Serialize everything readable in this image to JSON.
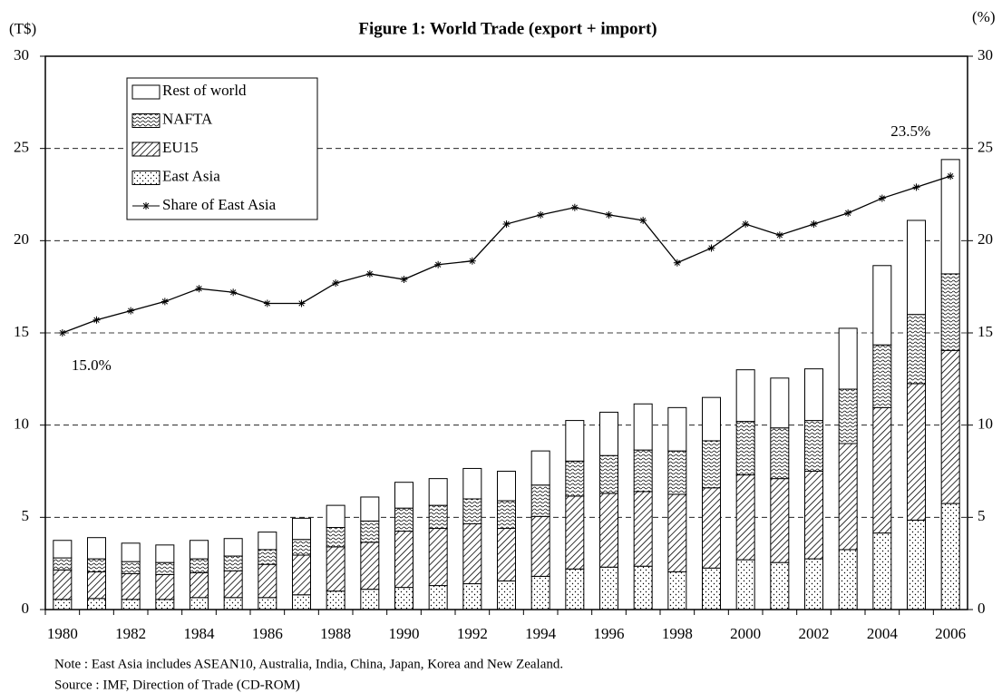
{
  "chart_data": {
    "type": "bar",
    "title": "Figure 1: World Trade (export + import)",
    "y_label": "(T$)",
    "y2_label": "(%)",
    "notes": [
      "Note : East Asia includes ASEAN10, Australia, India, China, Japan, Korea and New Zealand.",
      "Source : IMF, Direction of Trade (CD-ROM)"
    ],
    "categories": [
      "1980",
      null,
      "1982",
      null,
      "1984",
      null,
      "1986",
      null,
      "1988",
      null,
      "1990",
      null,
      "1992",
      null,
      "1994",
      null,
      "1996",
      null,
      "1998",
      null,
      "2000",
      null,
      "2002",
      null,
      "2004",
      null,
      "2006"
    ],
    "stacked": true,
    "series": [
      {
        "name": "East Asia",
        "color": "#000000",
        "pattern": "dots",
        "values": [
          0.55,
          0.6,
          0.55,
          0.55,
          0.65,
          0.65,
          0.65,
          0.8,
          1.0,
          1.1,
          1.2,
          1.3,
          1.4,
          1.55,
          1.8,
          2.2,
          2.3,
          2.35,
          2.05,
          2.25,
          2.7,
          2.55,
          2.75,
          3.25,
          4.15,
          4.85,
          5.75
        ]
      },
      {
        "name": "EU15",
        "color": "#000000",
        "pattern": "hatch",
        "values": [
          1.6,
          1.45,
          1.4,
          1.35,
          1.35,
          1.45,
          1.8,
          2.15,
          2.4,
          2.55,
          3.05,
          3.1,
          3.25,
          2.85,
          3.25,
          3.95,
          4.0,
          4.05,
          4.2,
          4.35,
          4.6,
          4.55,
          4.75,
          5.75,
          6.8,
          7.4,
          8.3
        ]
      },
      {
        "name": "NAFTA",
        "color": "#000000",
        "pattern": "waves",
        "values": [
          0.65,
          0.7,
          0.65,
          0.65,
          0.75,
          0.8,
          0.8,
          0.85,
          1.05,
          1.15,
          1.25,
          1.25,
          1.35,
          1.5,
          1.7,
          1.9,
          2.05,
          2.25,
          2.35,
          2.55,
          2.9,
          2.75,
          2.75,
          2.95,
          3.4,
          3.75,
          4.15
        ]
      },
      {
        "name": "Rest of world",
        "color": "#000000",
        "pattern": "none",
        "values": [
          0.95,
          1.15,
          1.0,
          0.95,
          1.0,
          0.95,
          0.95,
          1.15,
          1.2,
          1.3,
          1.4,
          1.45,
          1.65,
          1.6,
          1.85,
          2.2,
          2.35,
          2.5,
          2.35,
          2.35,
          2.8,
          2.7,
          2.8,
          3.3,
          4.3,
          5.1,
          6.2
        ]
      },
      {
        "name": "Share of East Asia",
        "type": "line",
        "axis": "y2",
        "color": "#000000",
        "values": [
          15.0,
          15.7,
          16.2,
          16.7,
          17.4,
          17.2,
          16.6,
          16.6,
          17.7,
          18.2,
          17.9,
          18.7,
          18.9,
          20.9,
          21.4,
          21.8,
          21.4,
          21.1,
          18.8,
          19.6,
          20.9,
          20.3,
          20.9,
          21.5,
          22.3,
          22.9,
          23.5
        ],
        "value_labels": [
          "15.0%",
          null,
          null,
          null,
          null,
          null,
          null,
          null,
          null,
          null,
          null,
          null,
          null,
          null,
          null,
          null,
          null,
          null,
          null,
          null,
          null,
          null,
          null,
          null,
          null,
          null,
          "23.5%"
        ]
      }
    ],
    "ylim": [
      0,
      30
    ],
    "yticks": [
      0,
      5,
      10,
      15,
      20,
      25,
      30
    ],
    "y2lim": [
      0,
      30
    ],
    "y2ticks": [
      0,
      5,
      10,
      15,
      20,
      25,
      30
    ],
    "grid": true,
    "grid_style": "dashed",
    "legend": "top-left"
  }
}
